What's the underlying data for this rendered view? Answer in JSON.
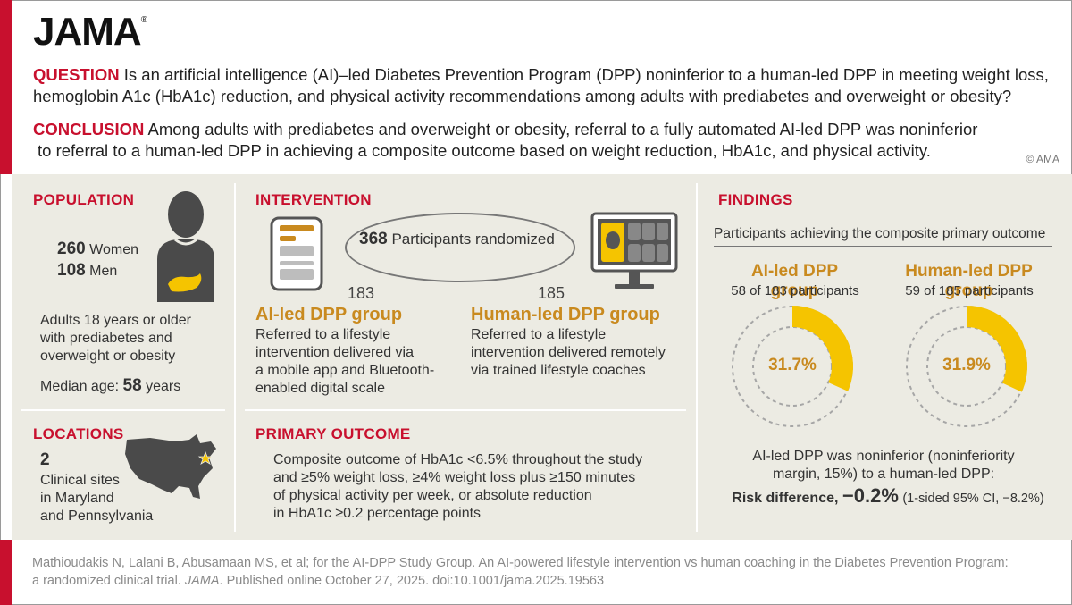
{
  "header": {
    "logo": "JAMA",
    "logo_mark": "®",
    "question_label": "QUESTION",
    "question_line1": "Is an artificial intelligence (AI)–led Diabetes Prevention Program (DPP) noninferior to a human-led DPP in meeting weight loss,",
    "question_line2": "hemoglobin A1c (HbA1c) reduction, and physical activity recommendations among adults with prediabetes and overweight or obesity?",
    "conclusion_label": "CONCLUSION",
    "conclusion_line1": "Among adults with prediabetes and overweight or obesity, referral to a fully automated AI-led DPP was noninferior",
    "conclusion_line2": "to referral to a human-led DPP in achieving a composite outcome based on weight reduction, HbA1c, and physical activity.",
    "copyright": "© AMA"
  },
  "population": {
    "title": "POPULATION",
    "women_count": "260",
    "women_label": "Women",
    "men_count": "108",
    "men_label": "Men",
    "desc_line1": "Adults 18 years or older",
    "desc_line2": "with prediabetes and",
    "desc_line3": "overweight or obesity",
    "median_label": "Median age:",
    "median_value": "58",
    "median_unit": "years"
  },
  "locations": {
    "title": "LOCATIONS",
    "count": "2",
    "line1": "Clinical sites",
    "line2": "in Maryland",
    "line3": "and Pennsylvania"
  },
  "intervention": {
    "title": "INTERVENTION",
    "randomized_count": "368",
    "randomized_label": "Participants randomized",
    "ai_count": "183",
    "ai_title": "AI-led DPP group",
    "ai_line1": "Referred to a lifestyle",
    "ai_line2": "intervention delivered via",
    "ai_line3": "a mobile app and Bluetooth-",
    "ai_line4": "enabled digital scale",
    "human_count": "185",
    "human_title": "Human-led DPP group",
    "human_line1": "Referred to a lifestyle",
    "human_line2": "intervention delivered remotely",
    "human_line3": "via trained lifestyle coaches"
  },
  "primary_outcome": {
    "title": "PRIMARY OUTCOME",
    "line1": "Composite outcome of HbA1c <6.5% throughout the study",
    "line2": "and ≥5% weight loss, ≥4% weight loss plus ≥150 minutes",
    "line3": "of physical activity per week, or absolute reduction",
    "line4": "in HbA1c ≥0.2 percentage points"
  },
  "findings": {
    "title": "FINDINGS",
    "subtitle": "Participants achieving the composite primary outcome",
    "groups": [
      {
        "title": "AI-led DPP group",
        "sub": "58 of 183 participants",
        "pct_label": "31.7%",
        "pct": 31.7
      },
      {
        "title": "Human-led DPP group",
        "sub": "59 of 185 participants",
        "pct_label": "31.9%",
        "pct": 31.9
      }
    ],
    "note_line1": "AI-led DPP was noninferior (noninferiority",
    "note_line2": "margin, 15%) to a human-led DPP:",
    "rd_label": "Risk difference,",
    "rd_value": "−0.2%",
    "rd_ci": "(1-sided 95% CI, −8.2%)",
    "colors": {
      "fill": "#f5c400",
      "ring": "#a6a6a6",
      "accent": "#c98a1f"
    }
  },
  "citation": {
    "line1": "Mathioudakis N, Lalani B, Abusamaan MS, et al; for the AI-DPP Study Group. An AI-powered lifestyle intervention vs human coaching in the Diabetes Prevention Program:",
    "line2_a": "a randomized clinical trial.",
    "line2_journal": "JAMA",
    "line2_b": ". Published online October 27, 2025. doi:10.1001/jama.2025.19563"
  }
}
